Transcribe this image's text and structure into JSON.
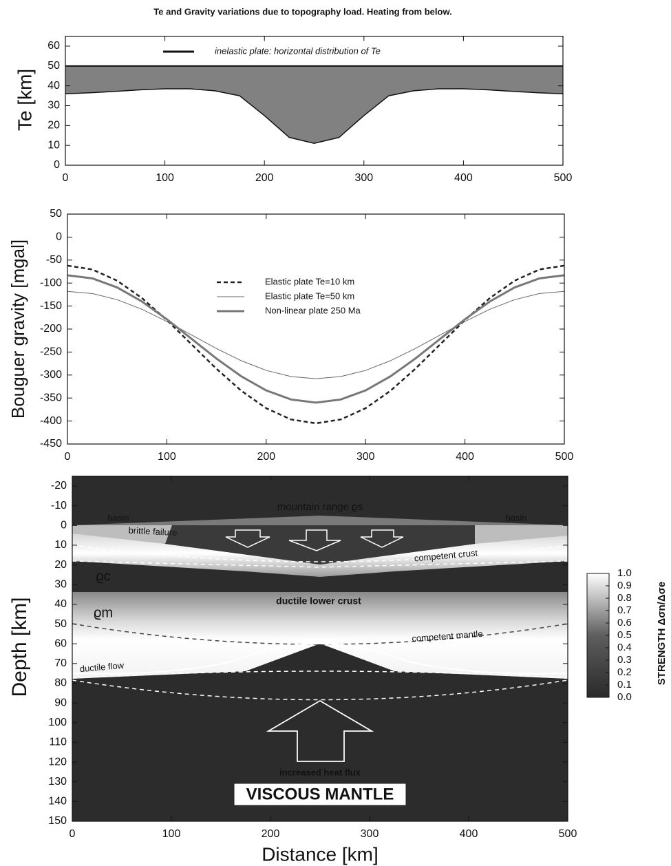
{
  "title": "Te and Gravity variations due to topography load. Heating from below.",
  "chart_data": [
    {
      "type": "area",
      "y_label": "Te [km]",
      "x": [
        0,
        25,
        50,
        75,
        100,
        125,
        150,
        175,
        200,
        225,
        250,
        275,
        300,
        325,
        350,
        375,
        400,
        425,
        450,
        475,
        500
      ],
      "series": [
        {
          "name": "inelastic plate: horizontal distribution of Te",
          "color": "#111111",
          "values": [
            36,
            36.5,
            37.2,
            38,
            38.5,
            38.5,
            37.5,
            35,
            25,
            14,
            11,
            14,
            25,
            35,
            37.5,
            38.5,
            38.5,
            38,
            37.2,
            36.5,
            36
          ]
        }
      ],
      "band_top": 50,
      "fill_color": "#6b6b6b",
      "xlim": [
        0,
        500
      ],
      "ylim": [
        0,
        65
      ],
      "xticks": [
        0,
        100,
        200,
        300,
        400,
        500
      ],
      "yticks": [
        0,
        10,
        20,
        30,
        40,
        50,
        60
      ]
    },
    {
      "type": "line",
      "y_label": "Bouguer gravity [mgal]",
      "x": [
        0,
        25,
        50,
        75,
        100,
        125,
        150,
        175,
        200,
        225,
        250,
        275,
        300,
        325,
        350,
        375,
        400,
        425,
        450,
        475,
        500
      ],
      "series": [
        {
          "name": "Elastic plate Te=10 km",
          "color": "#222222",
          "style": "dashed",
          "width": 2.5,
          "values": [
            -62,
            -70.4,
            -94.8,
            -132.7,
            -180.5,
            -233.5,
            -286.5,
            -334.3,
            -372.2,
            -396.6,
            -405,
            -396.6,
            -372.2,
            -334.3,
            -286.5,
            -233.5,
            -180.5,
            -132.7,
            -94.8,
            -70.4,
            -62
          ]
        },
        {
          "name": "Elastic plate Te=50 km",
          "color": "#666666",
          "style": "solid",
          "width": 1,
          "values": [
            -118,
            -122.7,
            -136.1,
            -157.1,
            -183.6,
            -213,
            -242.4,
            -268.9,
            -289.9,
            -303.3,
            -308,
            -303.3,
            -289.9,
            -268.9,
            -242.4,
            -213,
            -183.6,
            -157.1,
            -136.1,
            -122.7,
            -118
          ]
        },
        {
          "name": "Non-linear plate 250 Ma",
          "color": "#777777",
          "style": "solid",
          "width": 3,
          "values": [
            -83,
            -89.8,
            -109.5,
            -140.1,
            -178.7,
            -221.5,
            -264.3,
            -302.9,
            -333.5,
            -353.2,
            -360,
            -353.2,
            -333.5,
            -302.9,
            -264.3,
            -221.5,
            -178.7,
            -140.1,
            -109.5,
            -89.8,
            -83
          ]
        }
      ],
      "xlim": [
        0,
        500
      ],
      "ylim": [
        -450,
        50
      ],
      "xticks": [
        0,
        100,
        200,
        300,
        400,
        500
      ],
      "yticks": [
        -450,
        -400,
        -350,
        -300,
        -250,
        -200,
        -150,
        -100,
        -50,
        0,
        50
      ]
    },
    {
      "type": "section",
      "y_label": "Depth [km]",
      "x_label": "Distance [km]",
      "y_inverted": true,
      "xlim": [
        0,
        500
      ],
      "ylim": [
        -25,
        150
      ],
      "xticks": [
        0,
        100,
        200,
        300,
        400,
        500
      ],
      "yticks": [
        -20,
        -10,
        0,
        10,
        20,
        30,
        40,
        50,
        60,
        70,
        80,
        90,
        100,
        110,
        120,
        130,
        140,
        150
      ],
      "annotations": [
        "mountain range ϱs",
        "basin",
        "basin",
        "brittle failure",
        "competent crust",
        "ϱc",
        "ductile lower crust",
        "ϱm",
        "competent mantle",
        "ductile flow",
        "increased heat flux",
        "VISCOUS MANTLE"
      ],
      "colorbar": {
        "label": "STRENGTH Δσn/Δσe",
        "lim": [
          0,
          1
        ],
        "ticks": [
          {
            "value": 0,
            "label": "0.0"
          },
          0.1,
          0.2,
          0.3,
          0.4,
          0.5,
          0.6,
          0.7,
          0.8,
          0.9,
          {
            "value": 1,
            "label": "1.0"
          }
        ]
      }
    }
  ]
}
